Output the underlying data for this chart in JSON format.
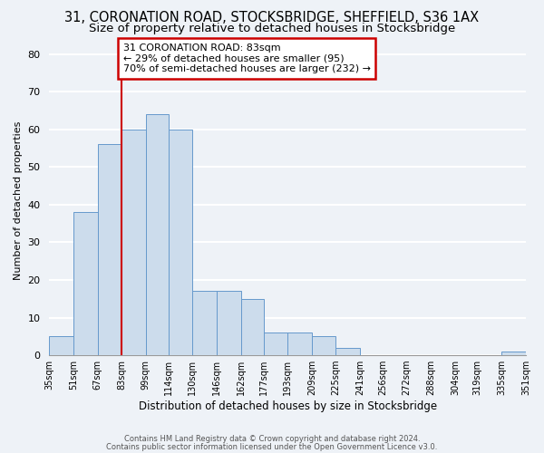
{
  "title1": "31, CORONATION ROAD, STOCKSBRIDGE, SHEFFIELD, S36 1AX",
  "title2": "Size of property relative to detached houses in Stocksbridge",
  "xlabel": "Distribution of detached houses by size in Stocksbridge",
  "ylabel": "Number of detached properties",
  "bar_color": "#ccdcec",
  "bar_edge_color": "#6699cc",
  "red_line_x": 83,
  "annotation_text": "31 CORONATION ROAD: 83sqm\n← 29% of detached houses are smaller (95)\n70% of semi-detached houses are larger (232) →",
  "annotation_box_edge": "#cc0000",
  "footer1": "Contains HM Land Registry data © Crown copyright and database right 2024.",
  "footer2": "Contains public sector information licensed under the Open Government Licence v3.0.",
  "bins": [
    35,
    51,
    67,
    83,
    99,
    114,
    130,
    146,
    162,
    177,
    193,
    209,
    225,
    241,
    256,
    272,
    288,
    304,
    319,
    335,
    351
  ],
  "counts": [
    5,
    38,
    56,
    60,
    64,
    60,
    17,
    17,
    15,
    6,
    6,
    5,
    2,
    0,
    0,
    0,
    0,
    0,
    0,
    1
  ],
  "ylim": [
    0,
    82
  ],
  "yticks": [
    0,
    10,
    20,
    30,
    40,
    50,
    60,
    70,
    80
  ],
  "background_color": "#eef2f7",
  "grid_color": "#ffffff",
  "title_fontsize": 10.5,
  "subtitle_fontsize": 9.5
}
